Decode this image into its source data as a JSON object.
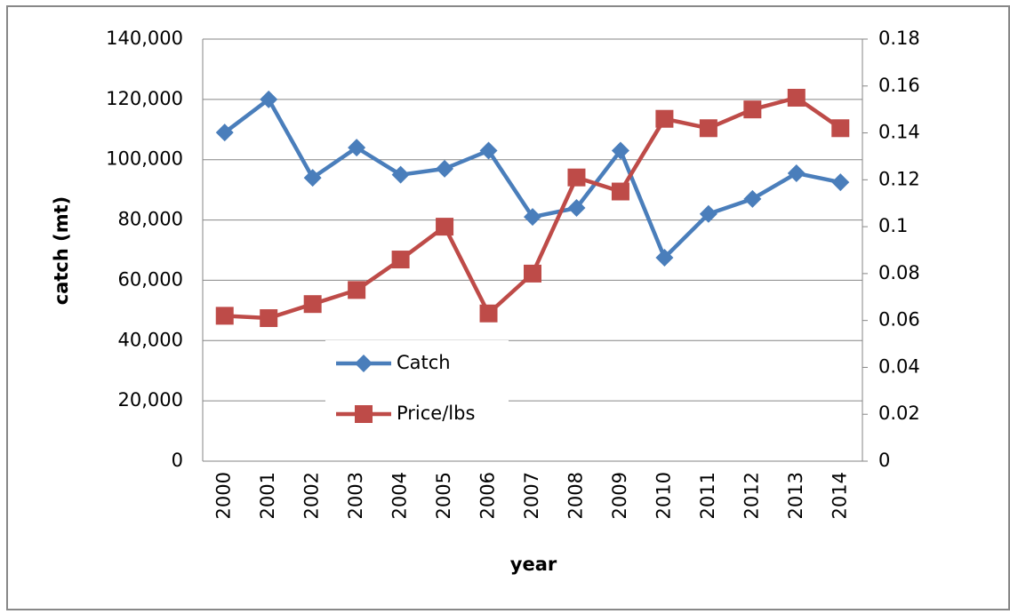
{
  "chart_data": {
    "type": "line",
    "y_label": "catch (mt)",
    "x_label": "year",
    "categories": [
      "2000",
      "2001",
      "2002",
      "2003",
      "2004",
      "2005",
      "2006",
      "2007",
      "2008",
      "2009",
      "2010",
      "2011",
      "2012",
      "2013",
      "2014"
    ],
    "series": [
      {
        "name": "Catch",
        "color": "#4a7ebb",
        "marker": "diamond",
        "values": [
          109000,
          120000,
          94000,
          104000,
          95000,
          97000,
          103000,
          81000,
          84000,
          103000,
          67500,
          82000,
          87000,
          95500,
          92500
        ]
      },
      {
        "name": "Price/lbs",
        "color": "#be4b48",
        "marker": "square",
        "axis": "y2",
        "values": [
          0.062,
          0.061,
          0.067,
          0.073,
          0.086,
          0.1,
          0.063,
          0.08,
          0.121,
          0.115,
          0.146,
          0.142,
          0.15,
          0.155,
          0.142
        ]
      }
    ],
    "ylim": [
      0,
      140000
    ],
    "yticks": [
      {
        "value": 0,
        "label": "0"
      },
      {
        "value": 20000,
        "label": "20,000"
      },
      {
        "value": 40000,
        "label": "40,000"
      },
      {
        "value": 60000,
        "label": "60,000"
      },
      {
        "value": 80000,
        "label": "80,000"
      },
      {
        "value": 100000,
        "label": "100,000"
      },
      {
        "value": 120000,
        "label": "120,000"
      },
      {
        "value": 140000,
        "label": "140,000"
      }
    ],
    "y2lim": [
      0,
      0.18
    ],
    "y2ticks": [
      0,
      0.02,
      0.04,
      0.06,
      0.08,
      0.1,
      0.12,
      0.14,
      0.16,
      0.18
    ],
    "grid": true
  }
}
